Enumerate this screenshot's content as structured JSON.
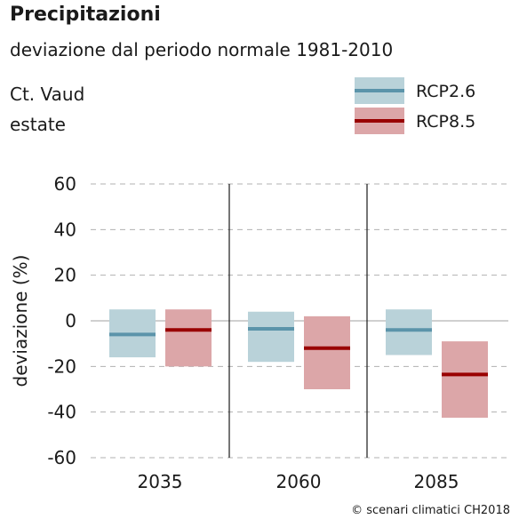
{
  "header": {
    "title": "Precipitazioni",
    "subtitle": "deviazione dal periodo normale 1981-2010",
    "region": "Ct. Vaud",
    "season": "estate"
  },
  "footer": {
    "copyright": "© scenari climatici CH2018"
  },
  "colors": {
    "rcp26_box": "#b9d2d9",
    "rcp26_line": "#5b94aa",
    "rcp85_box": "#dca6a8",
    "rcp85_line": "#990000",
    "grid": "#b0b0b0",
    "axis": "#1a1a1a"
  },
  "chart_data": {
    "type": "bar",
    "title": "Precipitazioni",
    "subtitle": "deviazione dal periodo normale 1981-2010",
    "ylabel": "deviazione (%)",
    "xlabel": "",
    "ylim": [
      -60,
      60
    ],
    "yticks": [
      60,
      40,
      20,
      0,
      -20,
      -40,
      -60
    ],
    "categories": [
      "2035",
      "2060",
      "2085"
    ],
    "grid": "horizontal dashed",
    "legend_position": "top-right",
    "series": [
      {
        "name": "RCP2.6",
        "median": [
          -6,
          -3.5,
          -4
        ],
        "low": [
          -16,
          -18,
          -15
        ],
        "high": [
          5,
          4,
          5
        ]
      },
      {
        "name": "RCP8.5",
        "median": [
          -4,
          -12,
          -23.5
        ],
        "low": [
          -20,
          -30,
          -42.5
        ],
        "high": [
          5,
          2,
          -9
        ]
      }
    ]
  }
}
